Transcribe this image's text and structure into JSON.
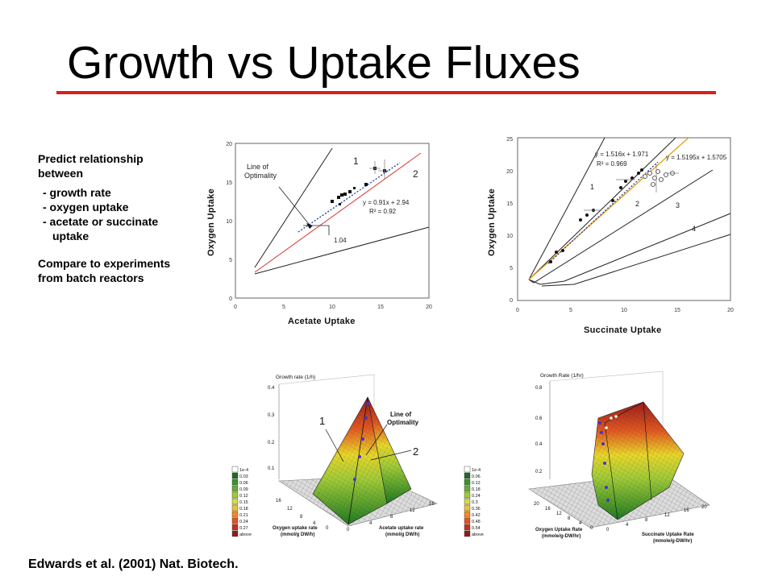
{
  "slide": {
    "title": "Growth vs Uptake Fluxes",
    "accent_color": "#d6201c",
    "bullets": {
      "line1": "Predict relationship",
      "line2": "between",
      "item1": "- growth rate",
      "item2": "- oxygen uptake",
      "item3a": "- acetate or succinate",
      "item3b": "uptake",
      "compare1": "Compare to experiments",
      "compare2": "from batch reactors"
    },
    "citation": "Edwards et al. (2001) Nat. Biotech."
  },
  "chart_acetate": {
    "ylabel": "Oxygen Uptake",
    "xlabel": "Acetate Uptake",
    "xticks": [
      "0",
      "5",
      "10",
      "15",
      "20"
    ],
    "yticks": [
      "0",
      "5",
      "10",
      "15",
      "20"
    ],
    "loo_label1": "Line of",
    "loo_label2": "Optimality",
    "region1": "1",
    "region2": "2",
    "fit1": "y = 0.91x + 2.94",
    "fit2": "R² = 0.92",
    "slope": "1.04"
  },
  "chart_succinate": {
    "ylabel": "Oxygen Uptake",
    "xlabel": "Succinate Uptake",
    "xticks": [
      "0",
      "5",
      "10",
      "15",
      "20"
    ],
    "yticks": [
      "0",
      "5",
      "10",
      "15",
      "20",
      "25"
    ],
    "fit1": "y = 1.516x + 1.971",
    "fit1_r2": "R² = 0.969",
    "fit2": "y = 1.5195x + 1.5705",
    "regions": [
      "1",
      "2",
      "3",
      "4"
    ]
  },
  "surface_acetate": {
    "zlabel": "Growth rate (1/h)",
    "zticks": [
      "0.4",
      "0.3",
      "0.2",
      "0.1"
    ],
    "loo1": "Line of",
    "loo2": "Optimality",
    "label1": "1",
    "label2": "2",
    "ticks_left": [
      "16",
      "12",
      "8",
      "4",
      "0"
    ],
    "ticks_right": [
      "0",
      "4",
      "8",
      "12",
      "16"
    ],
    "xlabel1": "Oxygen uptake rate",
    "xlabel2": "(mmol/g DW/h)",
    "ylabel1": "Acetate uptake rate",
    "ylabel2": "(mmol/g DW/h)",
    "legend": [
      "1e-4",
      "0.03",
      "0.06",
      "0.09",
      "0.12",
      "0.15",
      "0.18",
      "0.21",
      "0.24",
      "0.27",
      "above"
    ]
  },
  "surface_succinate": {
    "zlabel": "Growth Rate (1/hr)",
    "zticks": [
      "0.8",
      "0.6",
      "0.4",
      "0.2"
    ],
    "ticks_left": [
      "20",
      "16",
      "12",
      "8",
      "4",
      "0"
    ],
    "ticks_right": [
      "0",
      "4",
      "8",
      "12",
      "16",
      "20"
    ],
    "xlabel1": "Oxygen Uptake Rate",
    "xlabel2": "(mmole/g-DW/hr)",
    "ylabel1": "Succinate Uptake Rate",
    "ylabel2": "(mmole/g-DW/hr)",
    "legend": [
      "1e-4",
      "0.06",
      "0.12",
      "0.18",
      "0.24",
      "0.3",
      "0.36",
      "0.42",
      "0.48",
      "0.54",
      "above"
    ]
  }
}
